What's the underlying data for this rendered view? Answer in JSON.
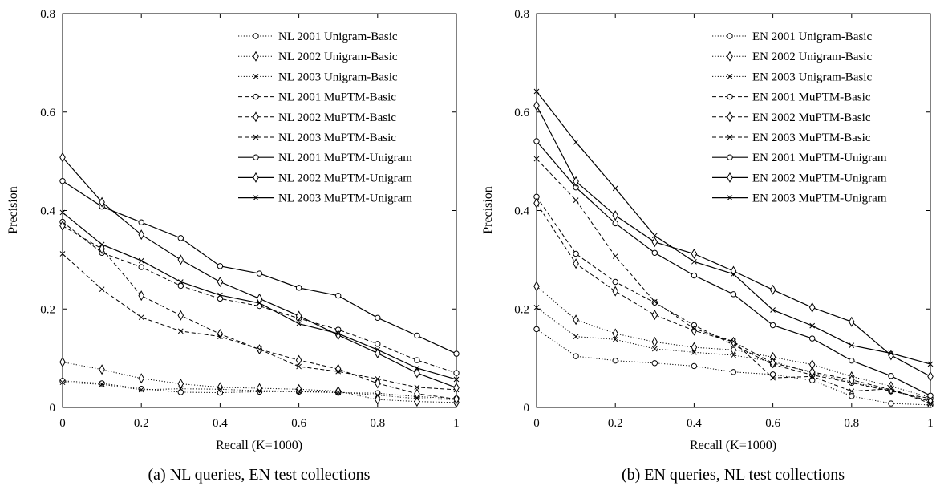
{
  "chart_data": [
    {
      "type": "line",
      "caption": "(a) NL queries, EN test collections",
      "xlabel": "Recall (K=1000)",
      "ylabel": "Precision",
      "xlim": [
        0,
        1
      ],
      "ylim": [
        0,
        0.8
      ],
      "xticks": [
        "0",
        "0.2",
        "0.4",
        "0.6",
        "0.8",
        "1"
      ],
      "yticks": [
        "0",
        "0.2",
        "0.4",
        "0.6",
        "0.8"
      ],
      "legend_position": "top-right",
      "grid": false,
      "x": [
        0,
        0.1,
        0.2,
        0.3,
        0.4,
        0.5,
        0.6,
        0.7,
        0.8,
        0.9,
        1.0
      ],
      "series": [
        {
          "name": "NL 2001 Unigram-Basic",
          "dash": "dotted",
          "marker": "circle",
          "values": [
            0.054,
            0.049,
            0.038,
            0.031,
            0.03,
            0.032,
            0.032,
            0.03,
            0.029,
            0.022,
            0.018
          ]
        },
        {
          "name": "NL 2002 Unigram-Basic",
          "dash": "dotted",
          "marker": "diamond",
          "values": [
            0.092,
            0.077,
            0.059,
            0.048,
            0.041,
            0.039,
            0.037,
            0.033,
            0.016,
            0.012,
            0.01
          ]
        },
        {
          "name": "NL 2003 Unigram-Basic",
          "dash": "dotted",
          "marker": "x",
          "values": [
            0.051,
            0.047,
            0.036,
            0.038,
            0.037,
            0.034,
            0.033,
            0.031,
            0.025,
            0.018,
            0.016
          ]
        },
        {
          "name": "NL 2001 MuPTM-Basic",
          "dash": "dashed",
          "marker": "circle",
          "values": [
            0.377,
            0.314,
            0.285,
            0.247,
            0.221,
            0.206,
            0.181,
            0.158,
            0.129,
            0.096,
            0.07
          ]
        },
        {
          "name": "NL 2002 MuPTM-Basic",
          "dash": "dashed",
          "marker": "diamond",
          "values": [
            0.369,
            0.322,
            0.227,
            0.187,
            0.149,
            0.118,
            0.096,
            0.078,
            0.049,
            0.028,
            0.017
          ]
        },
        {
          "name": "NL 2003 MuPTM-Basic",
          "dash": "dashed",
          "marker": "x",
          "values": [
            0.312,
            0.24,
            0.183,
            0.155,
            0.144,
            0.118,
            0.083,
            0.073,
            0.058,
            0.041,
            0.036
          ]
        },
        {
          "name": "NL 2001 MuPTM-Unigram",
          "dash": "solid",
          "marker": "circle",
          "values": [
            0.46,
            0.408,
            0.376,
            0.344,
            0.287,
            0.272,
            0.243,
            0.227,
            0.182,
            0.146,
            0.109
          ]
        },
        {
          "name": "NL 2002 MuPTM-Unigram",
          "dash": "solid",
          "marker": "diamond",
          "values": [
            0.508,
            0.417,
            0.351,
            0.3,
            0.255,
            0.221,
            0.186,
            0.147,
            0.11,
            0.07,
            0.04
          ]
        },
        {
          "name": "NL 2003 MuPTM-Unigram",
          "dash": "solid",
          "marker": "x",
          "values": [
            0.396,
            0.331,
            0.298,
            0.255,
            0.228,
            0.212,
            0.17,
            0.15,
            0.117,
            0.08,
            0.057
          ]
        }
      ]
    },
    {
      "type": "line",
      "caption": "(b) EN queries, NL test collections",
      "xlabel": "Recall (K=1000)",
      "ylabel": "Precision",
      "xlim": [
        0,
        1
      ],
      "ylim": [
        0,
        0.8
      ],
      "xticks": [
        "0",
        "0.2",
        "0.4",
        "0.6",
        "0.8",
        "1"
      ],
      "yticks": [
        "0",
        "0.2",
        "0.4",
        "0.6",
        "0.8"
      ],
      "legend_position": "top-right",
      "grid": false,
      "x": [
        0,
        0.1,
        0.2,
        0.3,
        0.4,
        0.5,
        0.6,
        0.7,
        0.8,
        0.9,
        1.0
      ],
      "series": [
        {
          "name": "EN 2001 Unigram-Basic",
          "dash": "dotted",
          "marker": "circle",
          "values": [
            0.159,
            0.104,
            0.095,
            0.09,
            0.084,
            0.072,
            0.067,
            0.055,
            0.023,
            0.008,
            0.005
          ]
        },
        {
          "name": "EN 2002 Unigram-Basic",
          "dash": "dotted",
          "marker": "diamond",
          "values": [
            0.246,
            0.178,
            0.15,
            0.133,
            0.122,
            0.117,
            0.102,
            0.087,
            0.063,
            0.043,
            0.02
          ]
        },
        {
          "name": "EN 2003 Unigram-Basic",
          "dash": "dotted",
          "marker": "x",
          "values": [
            0.203,
            0.144,
            0.138,
            0.119,
            0.112,
            0.106,
            0.093,
            0.07,
            0.052,
            0.034,
            0.014
          ]
        },
        {
          "name": "EN 2001 MuPTM-Basic",
          "dash": "dashed",
          "marker": "circle",
          "values": [
            0.428,
            0.312,
            0.255,
            0.213,
            0.167,
            0.127,
            0.087,
            0.066,
            0.05,
            0.033,
            0.018
          ]
        },
        {
          "name": "EN 2002 MuPTM-Basic",
          "dash": "dashed",
          "marker": "diamond",
          "values": [
            0.415,
            0.292,
            0.236,
            0.188,
            0.156,
            0.133,
            0.09,
            0.072,
            0.056,
            0.036,
            0.012
          ]
        },
        {
          "name": "EN 2003 MuPTM-Basic",
          "dash": "dashed",
          "marker": "x",
          "values": [
            0.505,
            0.421,
            0.307,
            0.215,
            0.16,
            0.134,
            0.06,
            0.063,
            0.033,
            0.038,
            0.008
          ]
        },
        {
          "name": "EN 2001 MuPTM-Unigram",
          "dash": "solid",
          "marker": "circle",
          "values": [
            0.541,
            0.447,
            0.374,
            0.314,
            0.268,
            0.23,
            0.167,
            0.14,
            0.095,
            0.064,
            0.024
          ]
        },
        {
          "name": "EN 2002 MuPTM-Unigram",
          "dash": "solid",
          "marker": "diamond",
          "values": [
            0.613,
            0.459,
            0.39,
            0.336,
            0.312,
            0.277,
            0.239,
            0.203,
            0.174,
            0.106,
            0.063
          ]
        },
        {
          "name": "EN 2003 MuPTM-Unigram",
          "dash": "solid",
          "marker": "x",
          "values": [
            0.642,
            0.539,
            0.445,
            0.349,
            0.296,
            0.271,
            0.198,
            0.166,
            0.126,
            0.11,
            0.088
          ]
        }
      ]
    }
  ]
}
